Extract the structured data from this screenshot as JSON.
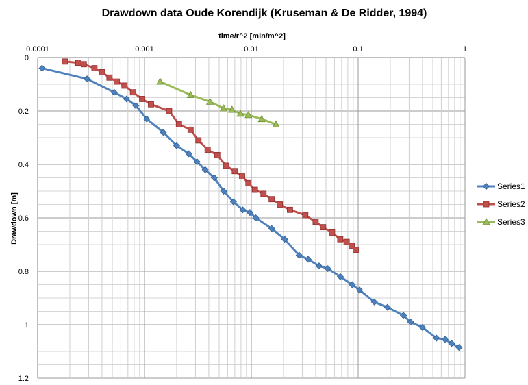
{
  "chart_data": {
    "type": "scatter",
    "title": "Drawdown data Oude Korendijk (Kruseman & De Ridder, 1994)",
    "xlabel": "time/r^2 [min/m^2]",
    "ylabel": "Drawdown [m]",
    "xscale": "log",
    "x_axis_position": "top",
    "y_axis_reversed": true,
    "xlim": [
      0.0001,
      1
    ],
    "ylim": [
      0,
      1.2
    ],
    "x_tick_labels": [
      "0.0001",
      "0.001",
      "0.01",
      "0.1",
      "1"
    ],
    "y_tick_labels": [
      "0",
      "0.2",
      "0.4",
      "0.6",
      "0.8",
      "1",
      "1.2"
    ],
    "grid": true,
    "legend_position": "right",
    "series": [
      {
        "name": "Series1",
        "color": "#4f81bd",
        "marker": "diamond",
        "x": [
          0.00011,
          0.00029,
          0.00052,
          0.00068,
          0.00083,
          0.00105,
          0.0015,
          0.002,
          0.0026,
          0.0031,
          0.0037,
          0.0045,
          0.0055,
          0.0068,
          0.0083,
          0.0097,
          0.011,
          0.0155,
          0.0205,
          0.028,
          0.034,
          0.043,
          0.052,
          0.068,
          0.088,
          0.103,
          0.142,
          0.188,
          0.265,
          0.31,
          0.4,
          0.54,
          0.65,
          0.75,
          0.88
        ],
        "y": [
          0.04,
          0.08,
          0.13,
          0.155,
          0.18,
          0.23,
          0.28,
          0.33,
          0.36,
          0.39,
          0.42,
          0.45,
          0.5,
          0.54,
          0.57,
          0.58,
          0.6,
          0.64,
          0.68,
          0.74,
          0.755,
          0.78,
          0.79,
          0.82,
          0.85,
          0.87,
          0.915,
          0.935,
          0.965,
          0.99,
          1.01,
          1.05,
          1.055,
          1.07,
          1.085
        ]
      },
      {
        "name": "Series2",
        "color": "#c0504d",
        "marker": "square",
        "x": [
          0.00018,
          0.00024,
          0.00027,
          0.00034,
          0.0004,
          0.00047,
          0.00055,
          0.00065,
          0.00078,
          0.00095,
          0.00115,
          0.0017,
          0.0021,
          0.0027,
          0.0032,
          0.0039,
          0.0048,
          0.0058,
          0.007,
          0.0082,
          0.0094,
          0.0108,
          0.013,
          0.0155,
          0.0185,
          0.023,
          0.032,
          0.04,
          0.047,
          0.057,
          0.068,
          0.078,
          0.087,
          0.095
        ],
        "y": [
          0.015,
          0.02,
          0.025,
          0.04,
          0.055,
          0.075,
          0.09,
          0.105,
          0.13,
          0.155,
          0.175,
          0.2,
          0.25,
          0.27,
          0.31,
          0.345,
          0.365,
          0.405,
          0.425,
          0.445,
          0.47,
          0.495,
          0.51,
          0.53,
          0.55,
          0.57,
          0.59,
          0.615,
          0.635,
          0.655,
          0.68,
          0.69,
          0.705,
          0.72
        ]
      },
      {
        "name": "Series3",
        "color": "#9bbb59",
        "marker": "triangle",
        "x": [
          0.0014,
          0.0027,
          0.0041,
          0.0055,
          0.0066,
          0.0079,
          0.0094,
          0.0125,
          0.017
        ],
        "y": [
          0.09,
          0.14,
          0.165,
          0.19,
          0.195,
          0.21,
          0.215,
          0.23,
          0.25
        ]
      }
    ]
  }
}
